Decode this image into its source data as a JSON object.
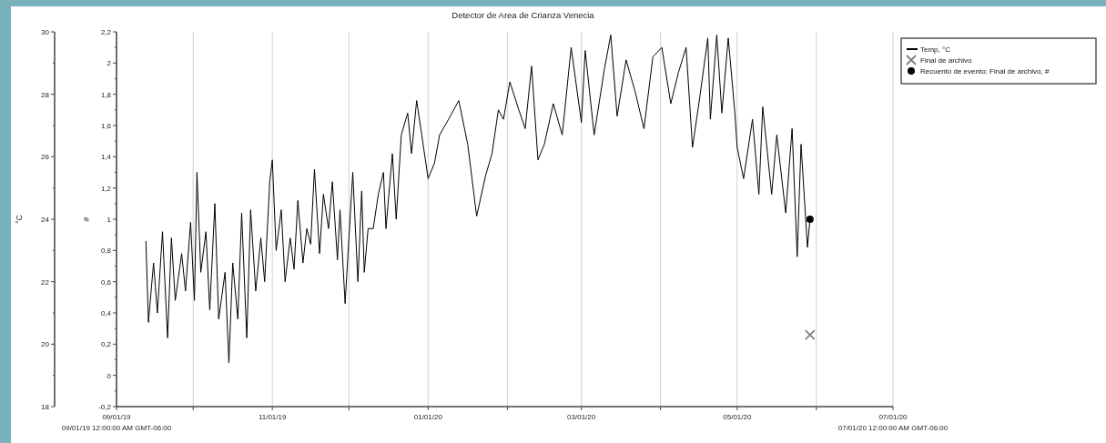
{
  "chart_data": {
    "type": "line",
    "title": "Detector de Area de Crianza Venecia",
    "ylabel": "°C",
    "y2label": "#",
    "xlim": [
      "2019-09-01",
      "2020-07-01"
    ],
    "xticks": [
      {
        "value": "2019-09-01",
        "label": "09/01/19"
      },
      {
        "value": "2019-10-01",
        "label": null
      },
      {
        "value": "2019-11-01",
        "label": "11/01/19"
      },
      {
        "value": "2019-12-01",
        "label": null
      },
      {
        "value": "2020-01-01",
        "label": "01/01/20"
      },
      {
        "value": "2020-02-01",
        "label": null
      },
      {
        "value": "2020-03-01",
        "label": "03/01/20"
      },
      {
        "value": "2020-04-01",
        "label": null
      },
      {
        "value": "2020-05-01",
        "label": "05/01/20"
      },
      {
        "value": "2020-06-01",
        "label": null
      },
      {
        "value": "2020-07-01",
        "label": "07/01/20"
      }
    ],
    "ylim": [
      18,
      30
    ],
    "yticks": [
      18,
      {
        "value": 19,
        "label": null
      },
      20,
      {
        "value": 21,
        "label": null
      },
      22,
      {
        "value": 23,
        "label": null
      },
      24,
      {
        "value": 25,
        "label": null
      },
      26,
      {
        "value": 27,
        "label": null
      },
      28,
      {
        "value": 29,
        "label": null
      },
      30
    ],
    "y2lim": [
      -0.2,
      2.2
    ],
    "y2ticks": [
      {
        "value": -0.2,
        "label": "-0,2"
      },
      {
        "value": -0.1,
        "label": null
      },
      0,
      {
        "value": 0.1,
        "label": null
      },
      {
        "value": 0.2,
        "label": "0,2"
      },
      {
        "value": 0.3,
        "label": null
      },
      {
        "value": 0.4,
        "label": "0,4"
      },
      {
        "value": 0.5,
        "label": null
      },
      {
        "value": 0.6,
        "label": "0,6"
      },
      {
        "value": 0.7,
        "label": null
      },
      {
        "value": 0.8,
        "label": "0,8"
      },
      {
        "value": 0.9,
        "label": null
      },
      1,
      {
        "value": 1.1,
        "label": null
      },
      {
        "value": 1.2,
        "label": "1,2"
      },
      {
        "value": 1.3,
        "label": null
      },
      {
        "value": 1.4,
        "label": "1,4"
      },
      {
        "value": 1.5,
        "label": null
      },
      {
        "value": 1.6,
        "label": "1,6"
      },
      {
        "value": 1.7,
        "label": null
      },
      {
        "value": 1.8,
        "label": "1,8"
      },
      {
        "value": 1.9,
        "label": null
      },
      2,
      {
        "value": 2.1,
        "label": null
      },
      {
        "value": 2.2,
        "label": "2,2"
      }
    ],
    "grid": "x",
    "legend": "top right",
    "annotations": [
      "09/01/19 12:00:00 AM GMT-06:00",
      "07/01/20 12:00:00 AM GMT-06:00"
    ],
    "series": [
      {
        "name": "Temp, °C",
        "marker": "none",
        "line_style": "solid",
        "color": "#000000",
        "x": [
          "2019-09-12T12:00",
          "2019-09-13T12:00",
          "2019-09-15T12:00",
          "2019-09-17",
          "2019-09-19",
          "2019-09-21",
          "2019-09-22T12:00",
          "2019-09-24",
          "2019-09-26T12:00",
          "2019-09-28",
          "2019-09-30",
          "2019-10-01T12:00",
          "2019-10-02T12:00",
          "2019-10-04",
          "2019-10-06",
          "2019-10-07T12:00",
          "2019-10-09T12:00",
          "2019-10-11",
          "2019-10-13T12:00",
          "2019-10-15",
          "2019-10-16T12:00",
          "2019-10-18T12:00",
          "2019-10-20",
          "2019-10-22",
          "2019-10-23T12:00",
          "2019-10-25T12:00",
          "2019-10-27T12:00",
          "2019-10-29",
          "2019-10-31",
          "2019-11-01",
          "2019-11-02T12:00",
          "2019-11-04T12:00",
          "2019-11-06",
          "2019-11-08",
          "2019-11-09T12:00",
          "2019-11-11",
          "2019-11-13",
          "2019-11-14T12:00",
          "2019-11-16",
          "2019-11-17T12:00",
          "2019-11-19T12:00",
          "2019-11-21",
          "2019-11-23",
          "2019-11-24T12:00",
          "2019-11-26T12:00",
          "2019-11-27T12:00",
          "2019-11-29T12:00",
          "2019-12-01",
          "2019-12-02T12:00",
          "2019-12-04T12:00",
          "2019-12-06",
          "2019-12-07",
          "2019-12-08T12:00",
          "2019-12-10T12:00",
          "2019-12-12T12:00",
          "2019-12-14T12:00",
          "2019-12-15T12:00",
          "2019-12-18",
          "2019-12-19T12:00",
          "2019-12-21T12:00",
          "2019-12-24",
          "2019-12-25T12:00",
          "2019-12-27T12:00",
          "2019-12-29T12:00",
          "2020-01-01",
          "2020-01-03T12:00",
          "2020-01-05T12:00",
          "2020-01-09",
          "2020-01-13",
          "2020-01-16T12:00",
          "2020-01-20",
          "2020-01-23T12:00",
          "2020-01-26",
          "2020-01-28T12:00",
          "2020-01-30T12:00",
          "2020-02-02",
          "2020-02-05T12:00",
          "2020-02-08",
          "2020-02-10T12:00",
          "2020-02-13",
          "2020-02-15T12:00",
          "2020-02-19",
          "2020-02-22T12:00",
          "2020-02-26",
          "2020-03-01",
          "2020-03-02T12:00",
          "2020-03-06",
          "2020-03-10",
          "2020-03-12T12:00",
          "2020-03-15",
          "2020-03-18T12:00",
          "2020-03-22",
          "2020-03-25T12:00",
          "2020-03-29",
          "2020-04-01T12:00",
          "2020-04-05",
          "2020-04-08",
          "2020-04-11",
          "2020-04-13T12:00",
          "2020-04-16",
          "2020-04-19T12:00",
          "2020-04-20T12:00",
          "2020-04-23",
          "2020-04-25",
          "2020-04-27T12:00",
          "2020-04-30",
          "2020-05-01",
          "2020-05-03T12:00",
          "2020-05-07",
          "2020-05-09T12:00",
          "2020-05-11",
          "2020-05-14T12:00",
          "2020-05-16T12:00",
          "2020-05-20",
          "2020-05-22T12:00",
          "2020-05-24T12:00",
          "2020-05-26",
          "2020-05-28T12:00",
          "2020-05-29T12:00"
        ],
        "values": [
          23.3,
          20.7,
          22.6,
          21.0,
          23.6,
          20.2,
          23.4,
          21.4,
          22.9,
          21.7,
          23.9,
          21.4,
          25.5,
          22.3,
          23.6,
          21.1,
          24.5,
          20.8,
          22.3,
          19.4,
          22.6,
          20.8,
          24.2,
          20.2,
          24.3,
          21.7,
          23.4,
          22.0,
          25.2,
          25.9,
          23.0,
          24.3,
          22.0,
          23.4,
          22.4,
          24.6,
          22.6,
          23.7,
          23.2,
          25.6,
          22.9,
          24.8,
          23.7,
          25.2,
          22.7,
          24.3,
          21.3,
          23.4,
          25.5,
          22.0,
          24.9,
          22.3,
          23.7,
          23.7,
          24.8,
          25.5,
          23.7,
          26.1,
          24.0,
          26.7,
          27.4,
          26.1,
          27.8,
          26.7,
          25.3,
          25.8,
          26.7,
          27.2,
          27.8,
          26.4,
          24.1,
          25.4,
          26.1,
          27.5,
          27.2,
          28.4,
          27.5,
          26.9,
          28.9,
          25.9,
          26.4,
          27.7,
          26.7,
          29.5,
          27.1,
          29.4,
          26.7,
          28.8,
          29.9,
          27.3,
          29.1,
          28.1,
          26.9,
          29.2,
          29.5,
          27.7,
          28.7,
          29.5,
          26.3,
          27.7,
          29.8,
          27.2,
          29.9,
          27.4,
          29.8,
          27.5,
          26.3,
          25.3,
          27.2,
          24.8,
          27.6,
          24.8,
          26.7,
          24.2,
          26.9,
          22.8,
          26.4,
          23.1,
          24.0
        ]
      },
      {
        "name": "Final de archivo",
        "type": "scatter",
        "marker": "cross",
        "color": "#808080",
        "x": [
          "2020-05-29T12:00"
        ],
        "values": [
          20.3
        ]
      },
      {
        "name": "Recuento de evento: Final de archivo, #",
        "type": "scatter",
        "marker": "circle",
        "axis": "y2",
        "color": "#000000",
        "x": [
          "2020-05-29T12:00"
        ],
        "values": [
          1
        ]
      }
    ]
  }
}
